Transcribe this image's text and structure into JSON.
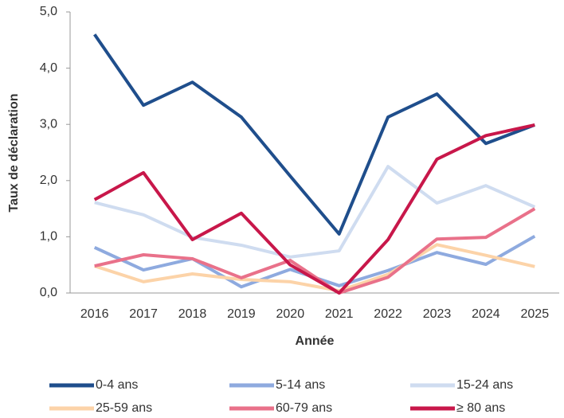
{
  "chart_data": {
    "type": "line",
    "x_label": "Année",
    "y_label": "Taux de déclaration",
    "categories": [
      "2016",
      "2017",
      "2018",
      "2019",
      "2020",
      "2021",
      "2022",
      "2023",
      "2024",
      "2025"
    ],
    "series": [
      {
        "name": "0-4 ans",
        "color": "#1f4e8c",
        "values": [
          4.6,
          3.34,
          3.75,
          3.13,
          2.08,
          1.05,
          3.13,
          3.54,
          2.66,
          2.99
        ]
      },
      {
        "name": "5-14 ans",
        "color": "#8eaadf",
        "values": [
          0.81,
          0.41,
          0.61,
          0.11,
          0.42,
          0.13,
          0.4,
          0.72,
          0.51,
          1.01
        ]
      },
      {
        "name": "15-24 ans",
        "color": "#cfdcf0",
        "values": [
          1.61,
          1.39,
          0.99,
          0.85,
          0.64,
          0.75,
          2.25,
          1.6,
          1.91,
          1.53
        ]
      },
      {
        "name": "25-59 ans",
        "color": "#fcd3a8",
        "values": [
          0.48,
          0.2,
          0.34,
          0.24,
          0.2,
          0.04,
          0.33,
          0.86,
          0.67,
          0.47
        ]
      },
      {
        "name": "60-79 ans",
        "color": "#e9718a",
        "values": [
          0.48,
          0.68,
          0.61,
          0.27,
          0.58,
          0.0,
          0.28,
          0.96,
          0.99,
          1.5
        ]
      },
      {
        "name": "≥ 80 ans",
        "color": "#c8174a",
        "values": [
          1.66,
          2.14,
          0.95,
          1.42,
          0.5,
          0.0,
          0.95,
          2.38,
          2.8,
          2.99
        ]
      }
    ],
    "ylim": [
      0,
      5
    ],
    "yticks": [
      {
        "value": 0,
        "label": "0,0"
      },
      {
        "value": 1,
        "label": "1,0"
      },
      {
        "value": 2,
        "label": "2,0"
      },
      {
        "value": 3,
        "label": "3,0"
      },
      {
        "value": 4,
        "label": "4,0"
      },
      {
        "value": 5,
        "label": "5,0"
      }
    ],
    "grid": false,
    "legend": "bottom"
  }
}
